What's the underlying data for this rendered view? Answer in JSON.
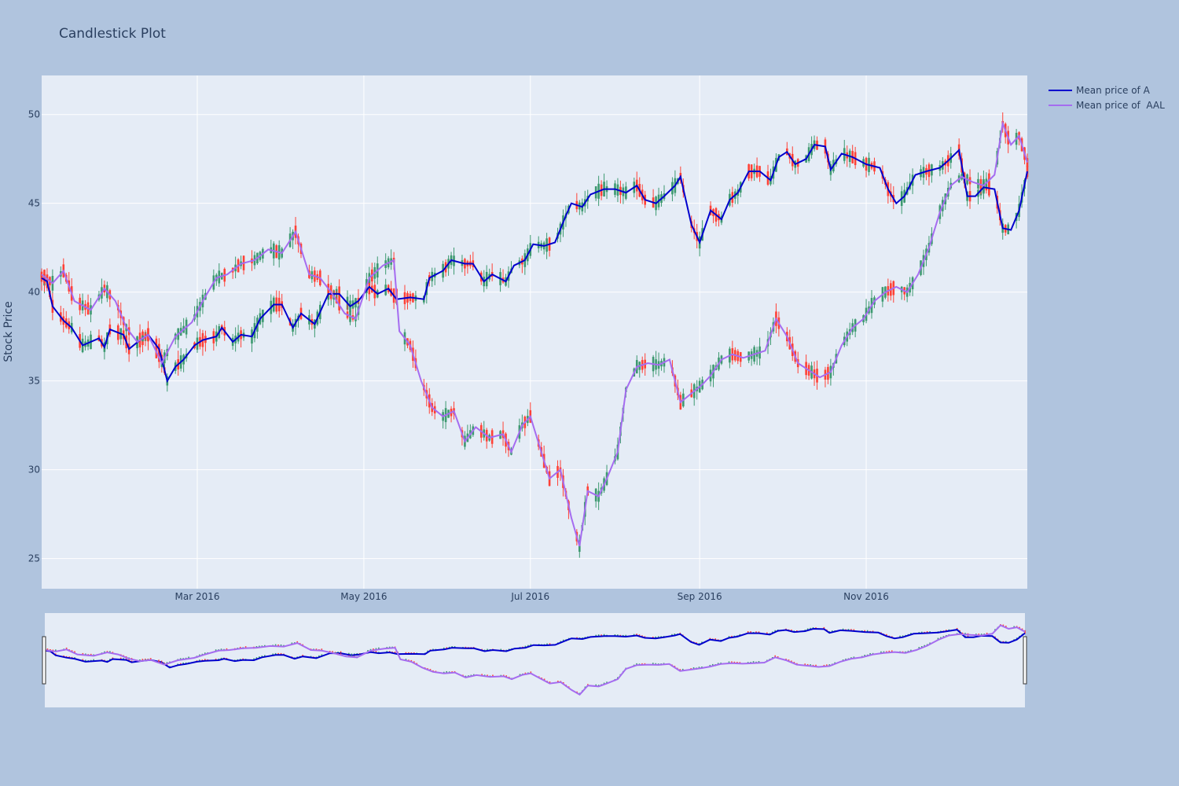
{
  "chart_data": {
    "type": "candlestick",
    "title": "Candlestick Plot",
    "ylabel": "Stock Price",
    "xlabel": "",
    "x_range": [
      "2016-01-04",
      "2016-12-30"
    ],
    "y_range": [
      23.3,
      52.2
    ],
    "y_ticks": [
      25,
      30,
      35,
      40,
      45,
      50
    ],
    "x_ticks": [
      {
        "date": "2016-03-01",
        "label": "Mar 2016"
      },
      {
        "date": "2016-05-01",
        "label": "May 2016"
      },
      {
        "date": "2016-07-01",
        "label": "Jul 2016"
      },
      {
        "date": "2016-09-01",
        "label": "Sep 2016"
      },
      {
        "date": "2016-11-01",
        "label": "Nov 2016"
      }
    ],
    "legend_position": "top-right",
    "grid": true,
    "rangeslider": true,
    "increasing_color": "#3d9970",
    "decreasing_color": "#ff4136",
    "series": [
      {
        "name": "Mean price of A",
        "color": "#0000cd",
        "keypoints": [
          [
            "2016-01-04",
            40.8
          ],
          [
            "2016-01-06",
            40.6
          ],
          [
            "2016-01-08",
            39.2
          ],
          [
            "2016-01-12",
            38.4
          ],
          [
            "2016-01-15",
            38.0
          ],
          [
            "2016-01-19",
            37.0
          ],
          [
            "2016-01-25",
            37.4
          ],
          [
            "2016-01-27",
            36.9
          ],
          [
            "2016-01-29",
            37.9
          ],
          [
            "2016-02-03",
            37.6
          ],
          [
            "2016-02-05",
            36.8
          ],
          [
            "2016-02-09",
            37.3
          ],
          [
            "2016-02-12",
            37.6
          ],
          [
            "2016-02-16",
            36.8
          ],
          [
            "2016-02-19",
            35.0
          ],
          [
            "2016-02-22",
            35.8
          ],
          [
            "2016-02-25",
            36.2
          ],
          [
            "2016-02-29",
            37.0
          ],
          [
            "2016-03-03",
            37.3
          ],
          [
            "2016-03-08",
            37.5
          ],
          [
            "2016-03-10",
            38.0
          ],
          [
            "2016-03-14",
            37.2
          ],
          [
            "2016-03-17",
            37.6
          ],
          [
            "2016-03-21",
            37.5
          ],
          [
            "2016-03-24",
            38.5
          ],
          [
            "2016-03-29",
            39.3
          ],
          [
            "2016-04-01",
            39.3
          ],
          [
            "2016-04-05",
            38.0
          ],
          [
            "2016-04-08",
            38.8
          ],
          [
            "2016-04-13",
            38.2
          ],
          [
            "2016-04-18",
            39.9
          ],
          [
            "2016-04-22",
            39.9
          ],
          [
            "2016-04-26",
            39.2
          ],
          [
            "2016-04-29",
            39.5
          ],
          [
            "2016-05-03",
            40.3
          ],
          [
            "2016-05-06",
            39.9
          ],
          [
            "2016-05-10",
            40.2
          ],
          [
            "2016-05-13",
            39.6
          ],
          [
            "2016-05-18",
            39.7
          ],
          [
            "2016-05-23",
            39.6
          ],
          [
            "2016-05-25",
            40.8
          ],
          [
            "2016-05-30",
            41.2
          ],
          [
            "2016-06-02",
            41.8
          ],
          [
            "2016-06-07",
            41.6
          ],
          [
            "2016-06-10",
            41.6
          ],
          [
            "2016-06-14",
            40.6
          ],
          [
            "2016-06-17",
            41.0
          ],
          [
            "2016-06-22",
            40.6
          ],
          [
            "2016-06-25",
            41.5
          ],
          [
            "2016-06-29",
            41.8
          ],
          [
            "2016-07-02",
            42.7
          ],
          [
            "2016-07-06",
            42.6
          ],
          [
            "2016-07-10",
            42.8
          ],
          [
            "2016-07-14",
            44.3
          ],
          [
            "2016-07-16",
            45.0
          ],
          [
            "2016-07-20",
            44.8
          ],
          [
            "2016-07-23",
            45.5
          ],
          [
            "2016-07-28",
            45.8
          ],
          [
            "2016-08-01",
            45.8
          ],
          [
            "2016-08-05",
            45.6
          ],
          [
            "2016-08-09",
            46.0
          ],
          [
            "2016-08-12",
            45.2
          ],
          [
            "2016-08-16",
            45.0
          ],
          [
            "2016-08-19",
            45.4
          ],
          [
            "2016-08-23",
            46.0
          ],
          [
            "2016-08-25",
            46.5
          ],
          [
            "2016-08-29",
            43.8
          ],
          [
            "2016-09-01",
            42.8
          ],
          [
            "2016-09-05",
            44.6
          ],
          [
            "2016-09-09",
            44.1
          ],
          [
            "2016-09-12",
            45.2
          ],
          [
            "2016-09-15",
            45.6
          ],
          [
            "2016-09-19",
            46.8
          ],
          [
            "2016-09-23",
            46.8
          ],
          [
            "2016-09-27",
            46.3
          ],
          [
            "2016-09-30",
            47.6
          ],
          [
            "2016-10-03",
            47.9
          ],
          [
            "2016-10-06",
            47.2
          ],
          [
            "2016-10-10",
            47.5
          ],
          [
            "2016-10-13",
            48.3
          ],
          [
            "2016-10-17",
            48.2
          ],
          [
            "2016-10-19",
            46.9
          ],
          [
            "2016-10-23",
            47.8
          ],
          [
            "2016-10-27",
            47.6
          ],
          [
            "2016-11-01",
            47.2
          ],
          [
            "2016-11-06",
            47.0
          ],
          [
            "2016-11-09",
            45.8
          ],
          [
            "2016-11-12",
            45.0
          ],
          [
            "2016-11-15",
            45.4
          ],
          [
            "2016-11-19",
            46.6
          ],
          [
            "2016-11-23",
            46.8
          ],
          [
            "2016-11-28",
            47.0
          ],
          [
            "2016-12-01",
            47.4
          ],
          [
            "2016-12-05",
            48.0
          ],
          [
            "2016-12-08",
            45.4
          ],
          [
            "2016-12-11",
            45.4
          ],
          [
            "2016-12-14",
            45.9
          ],
          [
            "2016-12-18",
            45.8
          ],
          [
            "2016-12-21",
            43.6
          ],
          [
            "2016-12-24",
            43.5
          ],
          [
            "2016-12-27",
            44.6
          ],
          [
            "2016-12-30",
            46.8
          ]
        ]
      },
      {
        "name": "Mean price of  AAL",
        "color": "#a56cf0",
        "keypoints": [
          [
            "2016-01-04",
            41.0
          ],
          [
            "2016-01-08",
            40.5
          ],
          [
            "2016-01-12",
            41.2
          ],
          [
            "2016-01-16",
            39.5
          ],
          [
            "2016-01-22",
            39.0
          ],
          [
            "2016-01-27",
            40.2
          ],
          [
            "2016-01-31",
            39.5
          ],
          [
            "2016-02-04",
            38.0
          ],
          [
            "2016-02-08",
            37.2
          ],
          [
            "2016-02-12",
            37.6
          ],
          [
            "2016-02-17",
            36.0
          ],
          [
            "2016-02-22",
            37.5
          ],
          [
            "2016-02-28",
            38.3
          ],
          [
            "2016-03-03",
            39.5
          ],
          [
            "2016-03-08",
            40.8
          ],
          [
            "2016-03-12",
            41.0
          ],
          [
            "2016-03-17",
            41.6
          ],
          [
            "2016-03-22",
            41.8
          ],
          [
            "2016-03-27",
            42.4
          ],
          [
            "2016-04-01",
            42.2
          ],
          [
            "2016-04-06",
            43.4
          ],
          [
            "2016-04-11",
            41.0
          ],
          [
            "2016-04-15",
            40.8
          ],
          [
            "2016-04-19",
            40.0
          ],
          [
            "2016-04-24",
            38.8
          ],
          [
            "2016-04-28",
            38.5
          ],
          [
            "2016-05-03",
            40.8
          ],
          [
            "2016-05-08",
            41.5
          ],
          [
            "2016-05-12",
            41.8
          ],
          [
            "2016-05-14",
            37.8
          ],
          [
            "2016-05-18",
            37.0
          ],
          [
            "2016-05-22",
            35.0
          ],
          [
            "2016-05-26",
            33.5
          ],
          [
            "2016-05-30",
            33.0
          ],
          [
            "2016-06-03",
            33.3
          ],
          [
            "2016-06-07",
            31.6
          ],
          [
            "2016-06-11",
            32.4
          ],
          [
            "2016-06-16",
            31.8
          ],
          [
            "2016-06-21",
            32.0
          ],
          [
            "2016-06-24",
            31.0
          ],
          [
            "2016-06-28",
            32.5
          ],
          [
            "2016-07-01",
            33.0
          ],
          [
            "2016-07-05",
            31.0
          ],
          [
            "2016-07-08",
            29.5
          ],
          [
            "2016-07-12",
            30.0
          ],
          [
            "2016-07-16",
            27.3
          ],
          [
            "2016-07-19",
            25.7
          ],
          [
            "2016-07-22",
            28.8
          ],
          [
            "2016-07-26",
            28.5
          ],
          [
            "2016-07-29",
            29.5
          ],
          [
            "2016-08-02",
            31.0
          ],
          [
            "2016-08-05",
            34.5
          ],
          [
            "2016-08-09",
            35.8
          ],
          [
            "2016-08-13",
            36.0
          ],
          [
            "2016-08-17",
            35.9
          ],
          [
            "2016-08-21",
            36.2
          ],
          [
            "2016-08-25",
            33.8
          ],
          [
            "2016-08-29",
            34.3
          ],
          [
            "2016-09-02",
            34.8
          ],
          [
            "2016-09-05",
            35.3
          ],
          [
            "2016-09-09",
            36.2
          ],
          [
            "2016-09-13",
            36.5
          ],
          [
            "2016-09-17",
            36.3
          ],
          [
            "2016-09-21",
            36.5
          ],
          [
            "2016-09-25",
            36.7
          ],
          [
            "2016-09-29",
            38.5
          ],
          [
            "2016-10-03",
            37.5
          ],
          [
            "2016-10-07",
            36.0
          ],
          [
            "2016-10-11",
            35.6
          ],
          [
            "2016-10-15",
            35.2
          ],
          [
            "2016-10-19",
            35.5
          ],
          [
            "2016-10-23",
            37.0
          ],
          [
            "2016-10-27",
            38.0
          ],
          [
            "2016-10-31",
            38.5
          ],
          [
            "2016-11-04",
            39.5
          ],
          [
            "2016-11-08",
            40.0
          ],
          [
            "2016-11-12",
            40.3
          ],
          [
            "2016-11-16",
            40.0
          ],
          [
            "2016-11-20",
            41.0
          ],
          [
            "2016-11-24",
            42.5
          ],
          [
            "2016-11-28",
            44.5
          ],
          [
            "2016-12-02",
            46.0
          ],
          [
            "2016-12-06",
            46.5
          ],
          [
            "2016-12-10",
            46.2
          ],
          [
            "2016-12-14",
            46.0
          ],
          [
            "2016-12-18",
            46.6
          ],
          [
            "2016-12-21",
            49.5
          ],
          [
            "2016-12-24",
            48.3
          ],
          [
            "2016-12-27",
            48.8
          ],
          [
            "2016-12-30",
            47.3
          ]
        ]
      }
    ]
  }
}
